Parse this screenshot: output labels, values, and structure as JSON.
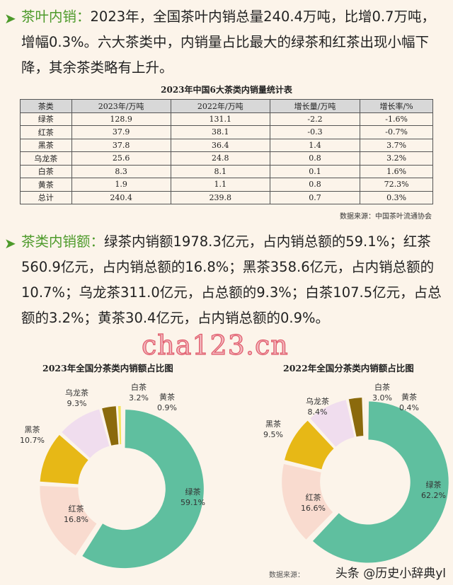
{
  "watermark": "cha123.cn",
  "section1": {
    "heading": "茶叶内销：",
    "text": "2023年，全国茶叶内销总量240.4万吨，比增0.7万吨，增幅0.3%。六大茶类中，内销量占比最大的绿茶和红茶出现小幅下降，其余茶类略有上升。"
  },
  "table": {
    "title": "2023年中国6大茶类内销量统计表",
    "headers": [
      "茶类",
      "2023年/万吨",
      "2022年/万吨",
      "增长量/万吨",
      "增长率/%"
    ],
    "rows": [
      [
        "绿茶",
        "128.9",
        "131.1",
        "-2.2",
        "-1.6%"
      ],
      [
        "红茶",
        "37.9",
        "38.1",
        "-0.3",
        "-0.7%"
      ],
      [
        "黑茶",
        "37.8",
        "36.4",
        "1.4",
        "3.7%"
      ],
      [
        "乌龙茶",
        "25.6",
        "24.8",
        "0.8",
        "3.2%"
      ],
      [
        "白茶",
        "8.3",
        "8.1",
        "0.1",
        "1.6%"
      ],
      [
        "黄茶",
        "1.9",
        "1.1",
        "0.8",
        "72.3%"
      ],
      [
        "总计",
        "240.4",
        "239.8",
        "0.7",
        "0.3%"
      ]
    ],
    "source": "数据来源：中国茶叶流通协会"
  },
  "section2": {
    "heading": "茶类内销额：",
    "text": "绿茶内销额1978.3亿元，占内销总额的59.1%；红茶560.9亿元，占内销总额的16.8%；黑茶358.6亿元，占内销总额的10.7%；乌龙茶311.0亿元，占总额的9.3%；白茶107.5亿元，占总额的3.2%；黄茶30.4亿元，占内销总额的0.9%。"
  },
  "chart_data": [
    {
      "type": "pie",
      "title": "2023年全国分茶类内销额占比图",
      "categories": [
        "绿茶",
        "红茶",
        "黑茶",
        "乌龙茶",
        "白茶",
        "黄茶"
      ],
      "values": [
        59.1,
        16.8,
        10.7,
        9.3,
        3.2,
        0.9
      ],
      "labels": [
        "59.1%",
        "16.8%",
        "10.7%",
        "9.3%",
        "3.2%",
        "0.9%"
      ],
      "colors": [
        "#5fbf9f",
        "#f9dbcf",
        "#e7b816",
        "#f0ddee",
        "#8b6a0c",
        "#f4e35a"
      ]
    },
    {
      "type": "pie",
      "title": "2022年全国分茶类内销额占比图",
      "categories": [
        "绿茶",
        "红茶",
        "黑茶",
        "乌龙茶",
        "白茶",
        "黄茶"
      ],
      "values": [
        62.2,
        16.6,
        9.5,
        8.4,
        3.0,
        0.4
      ],
      "labels": [
        "62.2%",
        "16.6%",
        "9.5%",
        "8.4%",
        "3.0%",
        "0.4%"
      ],
      "colors": [
        "#5fbf9f",
        "#f9dbcf",
        "#e7b816",
        "#f0ddee",
        "#8b6a0c",
        "#f4e35a"
      ]
    }
  ],
  "footer": {
    "watermark": "头条 @历史小辞典yl",
    "source_partial": "数据来源："
  }
}
